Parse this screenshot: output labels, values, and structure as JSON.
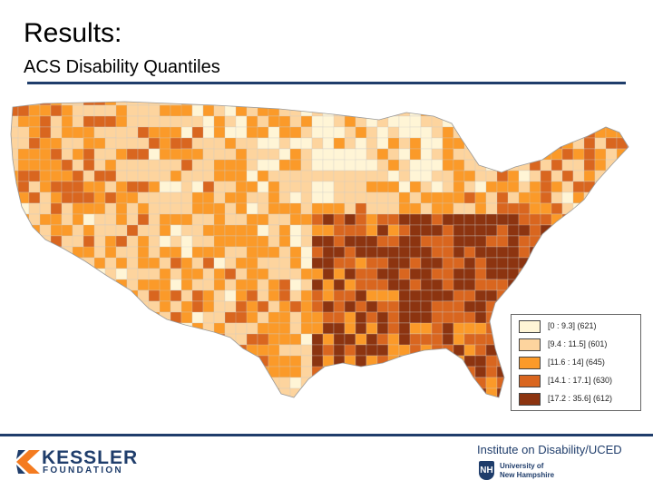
{
  "slide": {
    "title": "Results:",
    "subtitle": "ACS Disability Quantiles"
  },
  "map": {
    "region": "Contiguous United States (county level)",
    "legend": [
      {
        "label": "[0 : 9.3] (621)",
        "color": "#fff5d6"
      },
      {
        "label": "[9.4 : 11.5] (601)",
        "color": "#fdd49e"
      },
      {
        "label": "[11.6 : 14] (645)",
        "color": "#fb9a29"
      },
      {
        "label": "[14.1 : 17.1] (630)",
        "color": "#d9661f"
      },
      {
        "label": "[17.2 : 35.6] (612)",
        "color": "#8c3410"
      }
    ]
  },
  "footer": {
    "kessler_name": "KESSLER",
    "kessler_sub": "FOUNDATION",
    "institute": "Institute on Disability/UCED",
    "unh_line1": "University of",
    "unh_line2": "New Hampshire",
    "unh_mark": "NH"
  }
}
